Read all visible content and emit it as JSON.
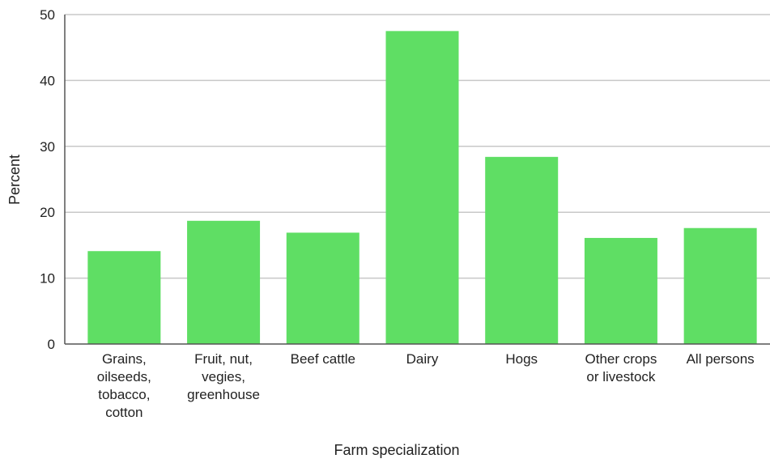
{
  "chart_data": {
    "type": "bar",
    "categories": [
      [
        "Grains,",
        "oilseeds,",
        "tobacco,",
        "cotton"
      ],
      [
        "Fruit, nut,",
        "vegies,",
        "greenhouse"
      ],
      [
        "Beef cattle"
      ],
      [
        "Dairy"
      ],
      [
        "Hogs"
      ],
      [
        "Other crops",
        "or livestock"
      ],
      [
        "All persons"
      ]
    ],
    "values": [
      14.1,
      18.7,
      16.9,
      47.5,
      28.4,
      16.1,
      17.6
    ],
    "title": "",
    "xlabel": "Farm specialization",
    "ylabel": "Percent",
    "ylim": [
      0,
      50
    ],
    "yticks": [
      0,
      10,
      20,
      30,
      40,
      50
    ],
    "grid": true,
    "bar_color": "#5fde64"
  }
}
